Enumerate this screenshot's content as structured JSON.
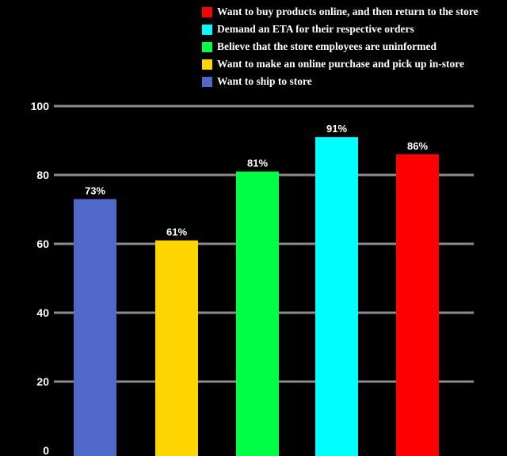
{
  "chart_data": {
    "type": "bar",
    "categories": [
      "Want to ship to store",
      "Want to make an online purchase and pick up in-store",
      "Believe that the store employees are uninformed",
      "Demand an ETA for their respective orders",
      "Want to buy products online, and then return to the store"
    ],
    "values": [
      73,
      61,
      81,
      91,
      86
    ],
    "data_labels": [
      "73%",
      "61%",
      "81%",
      "91%",
      "86%"
    ],
    "colors": [
      "#5068c8",
      "#ffd500",
      "#00ff44",
      "#00ffff",
      "#ff0000"
    ],
    "ylim": [
      0,
      100
    ],
    "yticks": [
      0,
      20,
      40,
      60,
      80,
      100
    ],
    "grid": true,
    "legend_position": "top-right",
    "legend": [
      {
        "label": "Want to buy products online, and then return to the store",
        "color": "#ff0000"
      },
      {
        "label": "Demand an ETA for their respective orders",
        "color": "#00ffff"
      },
      {
        "label": "Believe that the store employees are uninformed",
        "color": "#00ff44"
      },
      {
        "label": "Want to make an online purchase and pick up in-store",
        "color": "#ffd500"
      },
      {
        "label": "Want to ship to store",
        "color": "#5068c8"
      }
    ],
    "title": "",
    "xlabel": "",
    "ylabel": ""
  }
}
